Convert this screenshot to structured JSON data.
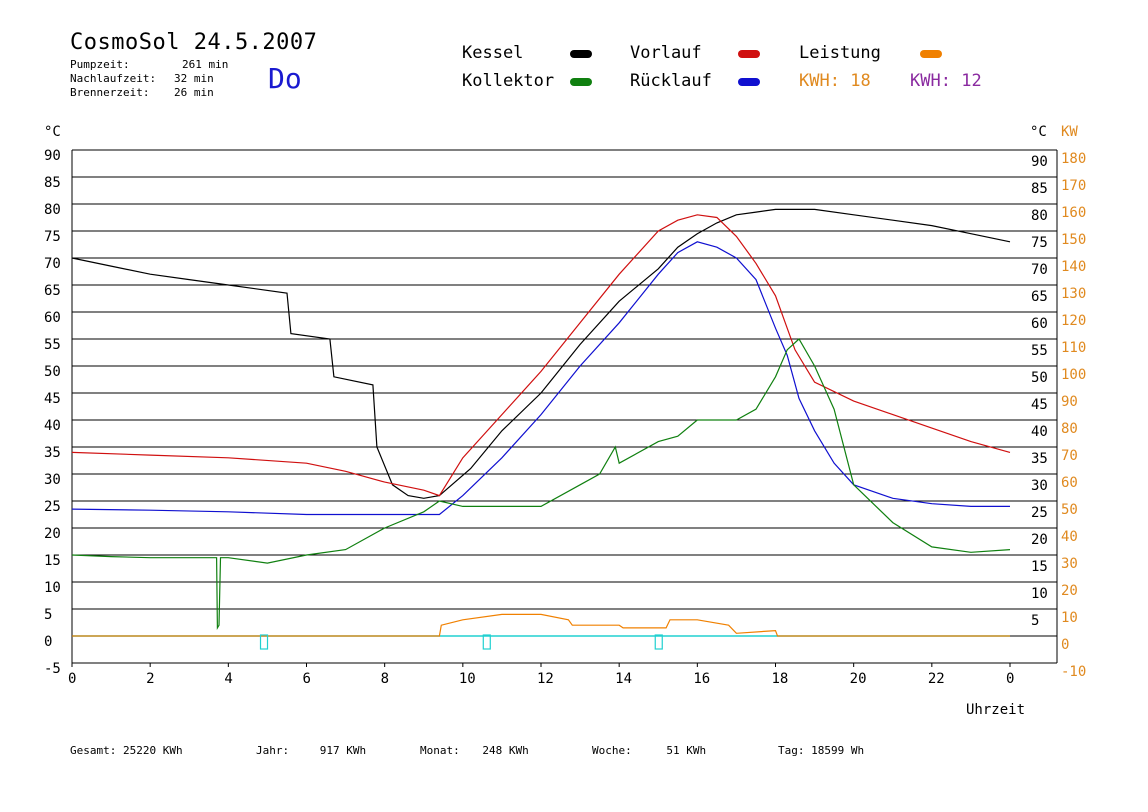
{
  "header": {
    "title": "CosmoSol 24.5.2007",
    "day": "Do",
    "stats": [
      {
        "label": "Pumpzeit:",
        "value": "261 min"
      },
      {
        "label": "Nachlaufzeit:",
        "value": "32 min"
      },
      {
        "label": "Brennerzeit:",
        "value": "26 min"
      }
    ]
  },
  "legend": {
    "items": [
      {
        "label": "Kessel",
        "color": "#000000"
      },
      {
        "label": "Vorlauf",
        "color": "#d01010"
      },
      {
        "label": "Leistung",
        "color": "#f08000"
      },
      {
        "label": "Kollektor",
        "color": "#108010"
      },
      {
        "label": "Rücklauf",
        "color": "#1010d0"
      }
    ],
    "kwh": [
      {
        "label": "KWH:",
        "value": "18",
        "color": "#e08a20"
      },
      {
        "label": "KWH:",
        "value": "12",
        "color": "#8a2aa0"
      }
    ]
  },
  "footer": [
    {
      "label": "Gesamt:",
      "value": "25220 KWh"
    },
    {
      "label": "Jahr:",
      "value": "917 KWh"
    },
    {
      "label": "Monat:",
      "value": "248 KWh"
    },
    {
      "label": "Woche:",
      "value": "51 KWh"
    },
    {
      "label": "Tag:",
      "value": "18599 Wh"
    }
  ],
  "chart_data": {
    "type": "line",
    "xlabel": "Uhrzeit",
    "ylabel_left": "°C",
    "ylabel_right_temp": "°C",
    "ylabel_right_power": "KW",
    "xlim": [
      0,
      24
    ],
    "ylim": [
      -5,
      95
    ],
    "x_ticks": [
      "0",
      "2",
      "4",
      "6",
      "8",
      "10",
      "12",
      "14",
      "16",
      "18",
      "20",
      "22",
      "0"
    ],
    "y_ticks_left": [
      "90",
      "85",
      "80",
      "75",
      "70",
      "65",
      "60",
      "55",
      "50",
      "45",
      "40",
      "35",
      "30",
      "25",
      "20",
      "15",
      "10",
      "5",
      "0",
      "-5"
    ],
    "y_ticks_right_temp": [
      "90",
      "85",
      "80",
      "75",
      "70",
      "65",
      "60",
      "55",
      "50",
      "45",
      "40",
      "35",
      "30",
      "25",
      "20",
      "15",
      "10",
      "5"
    ],
    "y_ticks_right_power": [
      "180",
      "170",
      "160",
      "150",
      "140",
      "130",
      "120",
      "110",
      "100",
      "90",
      "80",
      "70",
      "60",
      "50",
      "40",
      "30",
      "20",
      "10",
      "0",
      "-10"
    ],
    "grid": true,
    "series": [
      {
        "name": "Kessel",
        "color": "#000000",
        "x": [
          0,
          1,
          2,
          3,
          4,
          5.5,
          5.6,
          6.6,
          6.7,
          7.7,
          7.8,
          8.2,
          8.6,
          9.0,
          9.4,
          10.2,
          11.0,
          12.0,
          13.0,
          14.0,
          15.0,
          15.5,
          16.0,
          16.5,
          17.0,
          17.5,
          18.0,
          19.0,
          20.0,
          21.0,
          22.0,
          23.0,
          24.0
        ],
        "y": [
          70,
          68.5,
          67,
          66,
          65,
          63.5,
          56,
          55,
          48,
          46.5,
          35,
          28,
          26,
          25.5,
          26,
          31,
          38,
          45,
          54,
          62,
          68,
          72,
          74.5,
          76.5,
          78,
          78.5,
          79,
          79,
          78,
          77,
          76,
          74.5,
          73
        ]
      },
      {
        "name": "Vorlauf",
        "color": "#d01010",
        "x": [
          0,
          2,
          4,
          6,
          7,
          8,
          9,
          9.4,
          10,
          11,
          12,
          13,
          14,
          15,
          15.5,
          16,
          16.5,
          17,
          17.5,
          18,
          18.5,
          19,
          20,
          21,
          22,
          23,
          24
        ],
        "y": [
          34,
          33.5,
          33,
          32,
          30.5,
          28.5,
          27,
          26,
          33,
          41,
          49,
          58,
          67,
          75,
          77,
          78,
          77.5,
          74,
          69,
          63,
          53,
          47,
          43.5,
          41,
          38.5,
          36,
          34
        ]
      },
      {
        "name": "Rücklauf",
        "color": "#1010d0",
        "x": [
          0,
          2,
          4,
          6,
          8,
          9,
          9.4,
          10,
          11,
          12,
          13,
          14,
          15,
          15.5,
          16,
          16.5,
          17,
          17.5,
          18,
          18.3,
          18.6,
          19,
          19.5,
          20,
          21,
          22,
          23,
          24
        ],
        "y": [
          23.5,
          23.3,
          23,
          22.5,
          22.5,
          22.5,
          22.5,
          26,
          33,
          41,
          50,
          58,
          67,
          71,
          73,
          72,
          70,
          66,
          57,
          52,
          44,
          38,
          32,
          28,
          25.5,
          24.5,
          24,
          24
        ]
      },
      {
        "name": "Kollektor",
        "color": "#108010",
        "x": [
          0,
          1,
          2,
          3,
          3.7,
          3.72,
          3.76,
          3.8,
          4,
          5,
          6,
          7,
          8,
          9,
          9.4,
          10,
          11,
          12,
          13,
          13.5,
          13.9,
          14,
          15,
          15.5,
          16,
          17,
          17.5,
          18,
          18.3,
          18.6,
          19,
          19.5,
          20,
          21,
          22,
          23,
          24
        ],
        "y": [
          15,
          14.7,
          14.5,
          14.5,
          14.5,
          1.5,
          2,
          14.5,
          14.5,
          13.5,
          15,
          16,
          20,
          23,
          25,
          24,
          24,
          24,
          28,
          30,
          35,
          32,
          36,
          37,
          40,
          40,
          42,
          48,
          53,
          55,
          50,
          42,
          28,
          21,
          16.5,
          15.5,
          16
        ]
      },
      {
        "name": "Leistung",
        "color": "#f08000",
        "x": [
          0,
          9.4,
          9.45,
          10,
          11,
          12,
          12.7,
          12.8,
          13.5,
          14.0,
          14.1,
          15.2,
          15.3,
          16,
          16.8,
          17,
          18,
          18.05,
          24
        ],
        "y": [
          0,
          0,
          2,
          3,
          4,
          4,
          3,
          2,
          2,
          2,
          1.5,
          1.5,
          3,
          3,
          2,
          0.5,
          1,
          0,
          0
        ]
      }
    ],
    "markers": [
      {
        "type": "pump-marker",
        "x": 4.9
      },
      {
        "type": "pump-marker",
        "x": 10.6
      },
      {
        "type": "pump-marker",
        "x": 15.0
      }
    ]
  }
}
